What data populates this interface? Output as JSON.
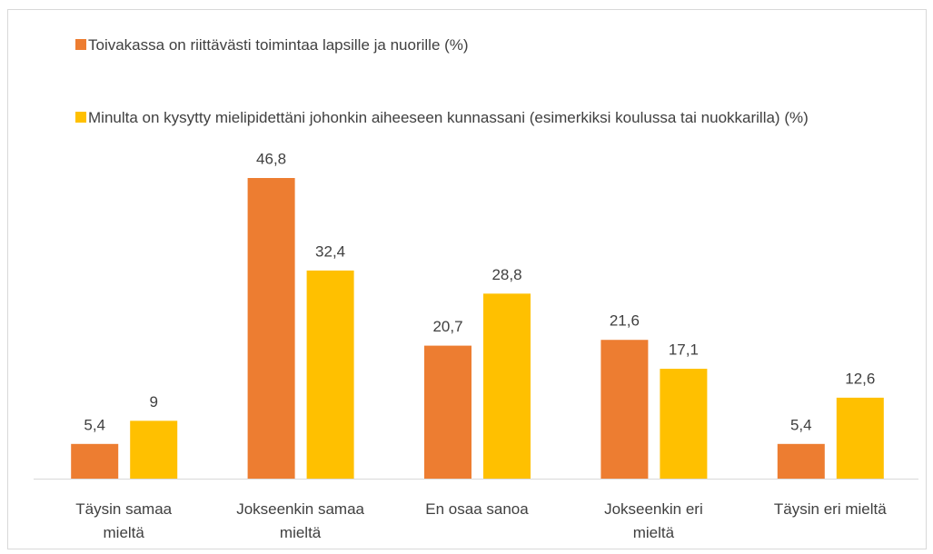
{
  "chart_data": {
    "type": "bar",
    "categories": [
      "Täysin samaa mieltä",
      "Jokseenkin samaa mieltä",
      "En osaa sanoa",
      "Jokseenkin eri mieltä",
      "Täysin eri mieltä"
    ],
    "series": [
      {
        "name": "Toivakassa on riittävästi toimintaa lapsille ja nuorille (%)",
        "color": "#ed7d31",
        "values": [
          5.4,
          46.8,
          20.7,
          21.6,
          5.4
        ],
        "value_labels": [
          "5,4",
          "46,8",
          "20,7",
          "21,6",
          "5,4"
        ]
      },
      {
        "name": "Minulta on kysytty mielipidettäni johonkin aiheeseen kunnassani (esimerkiksi koulussa tai nuokkarilla) (%)",
        "color": "#ffc000",
        "values": [
          9,
          32.4,
          28.8,
          17.1,
          12.6
        ],
        "value_labels": [
          "9",
          "32,4",
          "28,8",
          "17,1",
          "12,6"
        ]
      }
    ],
    "legend": "top"
  }
}
